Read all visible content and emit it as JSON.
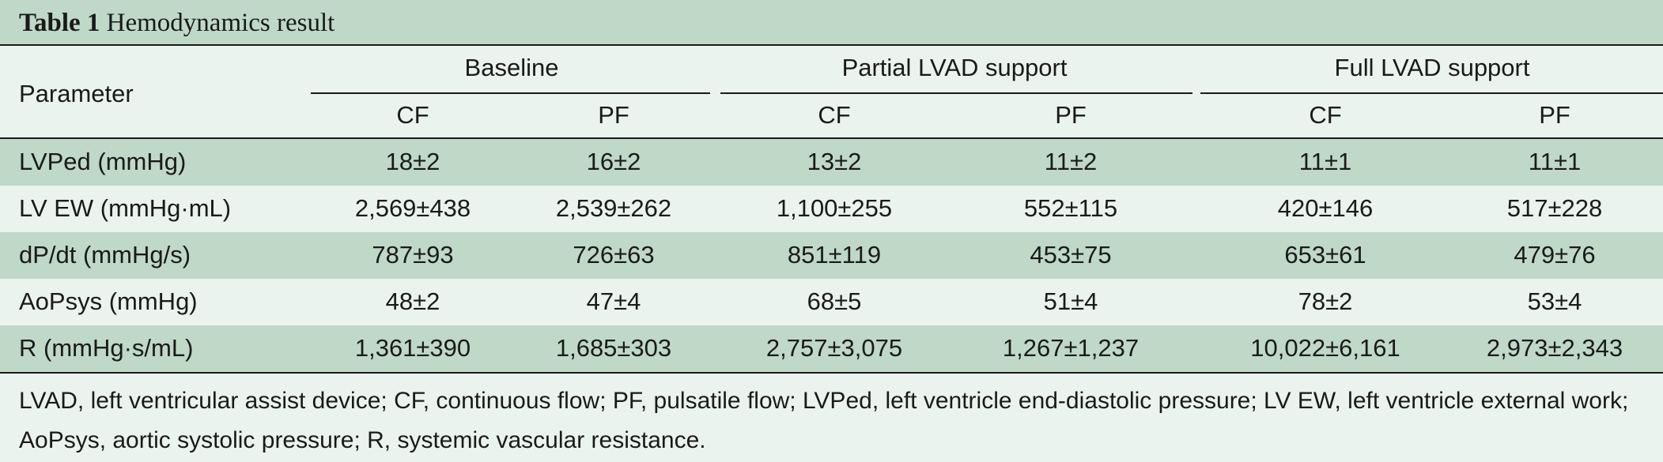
{
  "title": {
    "label": "Table 1",
    "text": "Hemodynamics result"
  },
  "header": {
    "parameter": "Parameter",
    "groups": [
      "Baseline",
      "Partial LVAD support",
      "Full LVAD support"
    ],
    "subcolumns": [
      "CF",
      "PF",
      "CF",
      "PF",
      "CF",
      "PF"
    ]
  },
  "rows": [
    {
      "parameter": "LVPed (mmHg)",
      "values": [
        "18±2",
        "16±2",
        "13±2",
        "11±2",
        "11±1",
        "11±1"
      ]
    },
    {
      "parameter": "LV EW (mmHg·mL)",
      "values": [
        "2,569±438",
        "2,539±262",
        "1,100±255",
        "552±115",
        "420±146",
        "517±228"
      ]
    },
    {
      "parameter": "dP/dt (mmHg/s)",
      "values": [
        "787±93",
        "726±63",
        "851±119",
        "453±75",
        "653±61",
        "479±76"
      ]
    },
    {
      "parameter": "AoPsys (mmHg)",
      "values": [
        "48±2",
        "47±4",
        "68±5",
        "51±4",
        "78±2",
        "53±4"
      ]
    },
    {
      "parameter": "R (mmHg·s/mL)",
      "values": [
        "1,361±390",
        "1,685±303",
        "2,757±3,075",
        "1,267±1,237",
        "10,022±6,161",
        "2,973±2,343"
      ]
    }
  ],
  "footnote": "LVAD, left ventricular assist device; CF, continuous flow; PF, pulsatile flow; LVPed, left ventricle end-diastolic pressure; LV EW, left ventricle external work; AoPsys, aortic systolic pressure; R, systemic vascular resistance.",
  "colors": {
    "band_green": "#bfd8c8",
    "band_light": "#eaf3ee",
    "rule": "#1a1a1a"
  }
}
